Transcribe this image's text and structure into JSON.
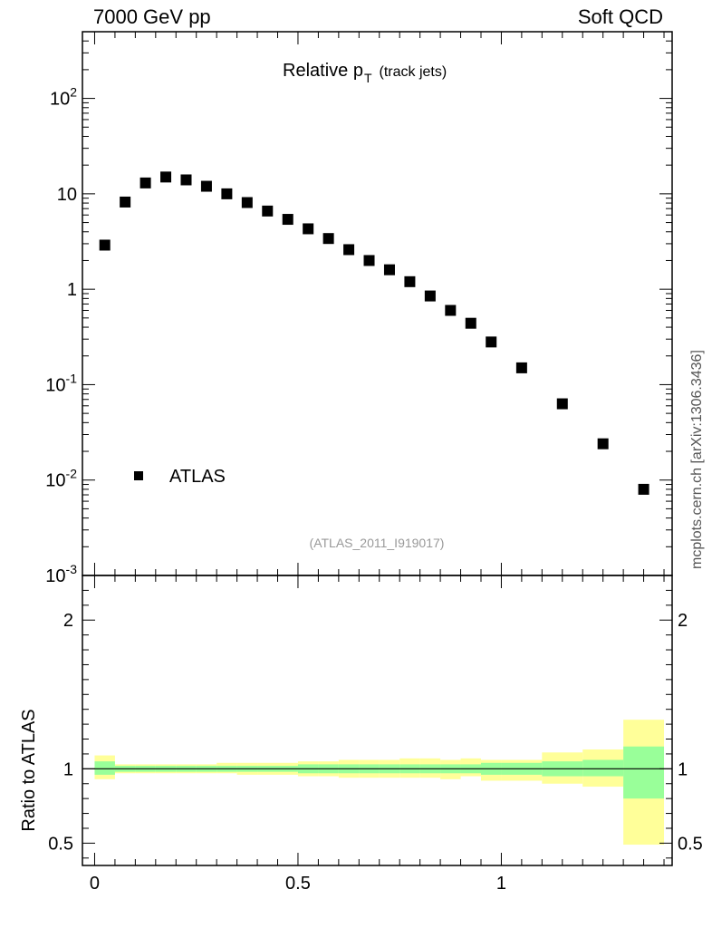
{
  "header": {
    "left": "7000 GeV pp",
    "right": "Soft QCD"
  },
  "side_label": "mcplots.cern.ch [arXiv:1306.3436]",
  "analysis_id": "(ATLAS_2011_I919017)",
  "chart_data": [
    {
      "type": "scatter",
      "title": "Relative p_T (track jets)",
      "title_main": "Relative p",
      "title_sub": "T",
      "title_extra": "(track jets)",
      "xlabel": "",
      "ylabel": "",
      "yscale": "log",
      "ylim": [
        0.001,
        500
      ],
      "xlim": [
        -0.03,
        1.42
      ],
      "y_tick_labels": [
        "10^-3",
        "10^-2",
        "10^-1",
        "1",
        "10",
        "10^2"
      ],
      "legend": {
        "label": "ATLAS",
        "placement": "lower-left"
      },
      "series": [
        {
          "name": "ATLAS",
          "x": [
            0.025,
            0.075,
            0.125,
            0.175,
            0.225,
            0.275,
            0.325,
            0.375,
            0.425,
            0.475,
            0.525,
            0.575,
            0.625,
            0.675,
            0.725,
            0.775,
            0.825,
            0.875,
            0.925,
            0.975,
            1.05,
            1.15,
            1.25,
            1.35
          ],
          "y": [
            2.9,
            8.2,
            13,
            15,
            14,
            12,
            10,
            8.1,
            6.6,
            5.4,
            4.3,
            3.4,
            2.6,
            2.0,
            1.6,
            1.2,
            0.85,
            0.6,
            0.44,
            0.28,
            0.15,
            0.063,
            0.024,
            0.008
          ]
        }
      ]
    },
    {
      "type": "area",
      "title": "",
      "xlabel": "",
      "ylabel": "Ratio to ATLAS",
      "ylim": [
        0.35,
        2.3
      ],
      "xlim": [
        -0.03,
        1.42
      ],
      "x_tick_labels": [
        "0",
        "0.5",
        "1"
      ],
      "y_tick_labels": [
        "0.5",
        "1",
        "2"
      ],
      "reference_line": 1,
      "bin_edges": [
        0,
        0.05,
        0.1,
        0.15,
        0.2,
        0.25,
        0.3,
        0.35,
        0.4,
        0.45,
        0.5,
        0.55,
        0.6,
        0.65,
        0.7,
        0.75,
        0.8,
        0.85,
        0.9,
        0.95,
        1.0,
        1.1,
        1.2,
        1.3,
        1.4
      ],
      "bands": [
        {
          "name": "total",
          "color": "#ffff99",
          "lo": [
            0.93,
            0.97,
            0.97,
            0.97,
            0.97,
            0.97,
            0.97,
            0.96,
            0.96,
            0.96,
            0.95,
            0.95,
            0.94,
            0.94,
            0.94,
            0.94,
            0.94,
            0.93,
            0.95,
            0.92,
            0.92,
            0.9,
            0.88,
            0.49
          ],
          "hi": [
            1.09,
            1.03,
            1.03,
            1.03,
            1.03,
            1.03,
            1.04,
            1.04,
            1.04,
            1.04,
            1.05,
            1.05,
            1.06,
            1.06,
            1.06,
            1.07,
            1.07,
            1.06,
            1.07,
            1.06,
            1.06,
            1.11,
            1.13,
            1.33
          ]
        },
        {
          "name": "statistical",
          "color": "#99ff99",
          "lo": [
            0.96,
            0.98,
            0.98,
            0.98,
            0.98,
            0.98,
            0.98,
            0.98,
            0.98,
            0.98,
            0.97,
            0.97,
            0.97,
            0.97,
            0.97,
            0.97,
            0.97,
            0.97,
            0.97,
            0.96,
            0.96,
            0.95,
            0.95,
            0.8
          ],
          "hi": [
            1.05,
            1.02,
            1.02,
            1.02,
            1.02,
            1.02,
            1.02,
            1.02,
            1.02,
            1.02,
            1.03,
            1.03,
            1.03,
            1.03,
            1.03,
            1.03,
            1.03,
            1.03,
            1.03,
            1.04,
            1.04,
            1.05,
            1.06,
            1.15
          ]
        }
      ]
    }
  ]
}
